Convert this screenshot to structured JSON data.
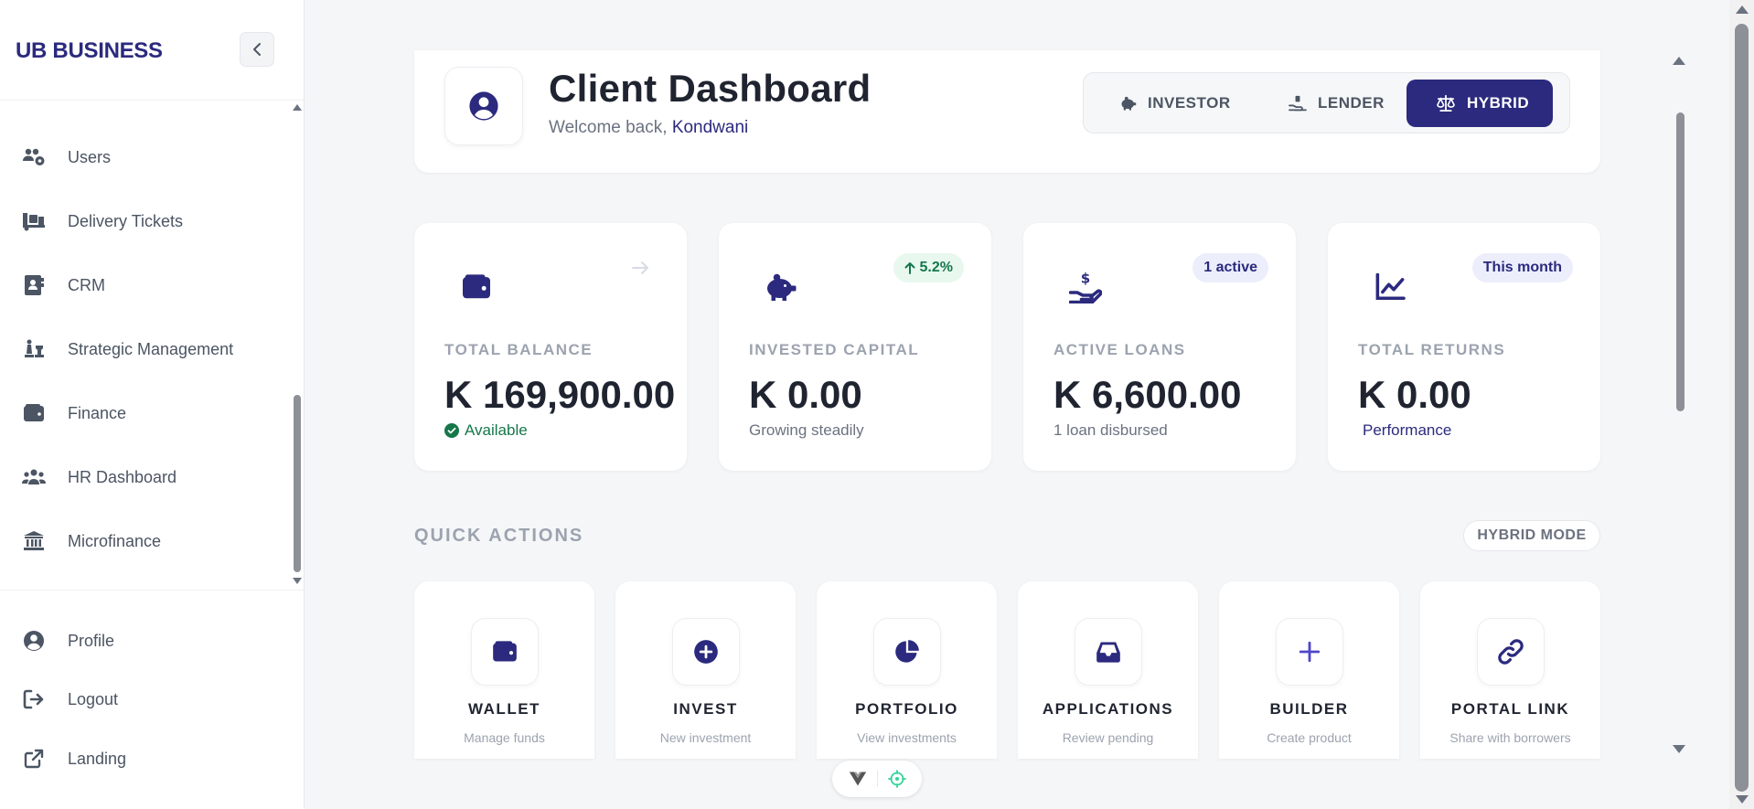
{
  "sidebar": {
    "brand": "UB BUSINESS",
    "collapse_icon": "chevron-left-icon",
    "items": [
      {
        "label": "Users",
        "icon": "users-cog-icon"
      },
      {
        "label": "Delivery Tickets",
        "icon": "truck-loading-icon"
      },
      {
        "label": "CRM",
        "icon": "address-book-icon"
      },
      {
        "label": "Strategic Management",
        "icon": "chess-icon"
      },
      {
        "label": "Finance",
        "icon": "wallet-icon"
      },
      {
        "label": "HR Dashboard",
        "icon": "users-icon"
      },
      {
        "label": "Microfinance",
        "icon": "bank-icon"
      }
    ],
    "bottom": [
      {
        "label": "Profile",
        "icon": "user-circle-icon"
      },
      {
        "label": "Logout",
        "icon": "logout-icon"
      },
      {
        "label": "Landing",
        "icon": "external-link-icon"
      }
    ]
  },
  "header": {
    "title": "Client Dashboard",
    "welcome_prefix": "Welcome back,",
    "user_name": "Kondwani",
    "modes": [
      {
        "label": "INVESTOR",
        "icon": "piggy-bank-icon",
        "active": false
      },
      {
        "label": "LENDER",
        "icon": "hand-holding-icon",
        "active": false
      },
      {
        "label": "HYBRID",
        "icon": "scale-icon",
        "active": true
      }
    ]
  },
  "stats": [
    {
      "label": "TOTAL BALANCE",
      "value": "K 169,900.00",
      "sub": "Available",
      "icon": "wallet-icon"
    },
    {
      "label": "INVESTED CAPITAL",
      "value": "K 0.00",
      "sub": "Growing steadily",
      "badge": "5.2%",
      "icon": "piggy-bank-icon"
    },
    {
      "label": "ACTIVE LOANS",
      "value": "K 6,600.00",
      "sub": "1 loan disbursed",
      "badge": "1 active",
      "icon": "hand-holding-dollar-icon"
    },
    {
      "label": "TOTAL RETURNS",
      "value": "K 0.00",
      "sub": "Performance",
      "badge": "This month",
      "icon": "chart-line-icon"
    }
  ],
  "quick_actions": {
    "title": "QUICK ACTIONS",
    "mode_pill": "HYBRID MODE",
    "items": [
      {
        "name": "WALLET",
        "desc": "Manage funds",
        "icon": "wallet-icon"
      },
      {
        "name": "INVEST",
        "desc": "New investment",
        "icon": "plus-circle-icon"
      },
      {
        "name": "PORTFOLIO",
        "desc": "View investments",
        "icon": "pie-chart-icon"
      },
      {
        "name": "APPLICATIONS",
        "desc": "Review pending",
        "icon": "inbox-icon"
      },
      {
        "name": "BUILDER",
        "desc": "Create product",
        "icon": "plus-icon"
      },
      {
        "name": "PORTAL LINK",
        "desc": "Share with borrowers",
        "icon": "link-icon"
      }
    ]
  },
  "colors": {
    "brand": "#2b2a7e",
    "success": "#16774a"
  }
}
